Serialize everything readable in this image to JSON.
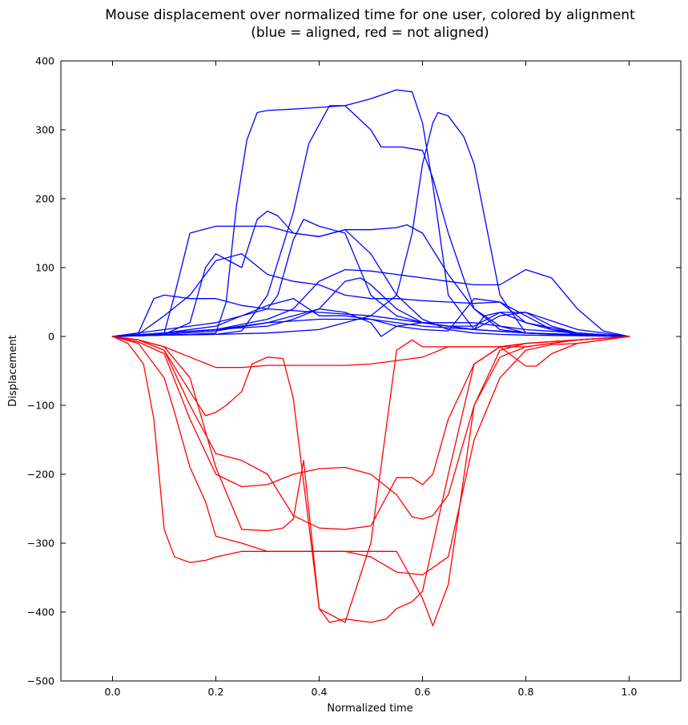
{
  "chart_data": {
    "type": "line",
    "title": "Mouse displacement over normalized time for one user, colored by alignment",
    "subtitle": "(blue = aligned, red = not aligned)",
    "xlabel": "Normalized time",
    "ylabel": "Displacement",
    "xlim": [
      -0.1,
      1.1
    ],
    "ylim": [
      -500,
      400
    ],
    "xticks": [
      0.0,
      0.2,
      0.4,
      0.6,
      0.8,
      1.0
    ],
    "xtick_labels": [
      "0.0",
      "0.2",
      "0.4",
      "0.6",
      "0.8",
      "1.0"
    ],
    "yticks": [
      -500,
      -400,
      -300,
      -200,
      -100,
      0,
      100,
      200,
      300,
      400
    ],
    "ytick_labels": [
      "−500",
      "−400",
      "−300",
      "−200",
      "−100",
      "0",
      "100",
      "200",
      "300",
      "400"
    ],
    "grid": false,
    "legend": "none",
    "colors": {
      "aligned": "#0000ff",
      "not_aligned": "#ff0000"
    },
    "series": [
      {
        "group": "aligned",
        "x": [
          0,
          0.1,
          0.15,
          0.2,
          0.22,
          0.24,
          0.26,
          0.28,
          0.3,
          0.35,
          0.45,
          0.5,
          0.52,
          0.56,
          0.6,
          0.62,
          0.65,
          0.7,
          0.75,
          0.8,
          0.9,
          1.0
        ],
        "y": [
          0,
          2,
          3,
          5,
          50,
          190,
          285,
          325,
          328,
          330,
          335,
          300,
          275,
          275,
          270,
          230,
          150,
          40,
          10,
          5,
          2,
          0
        ]
      },
      {
        "group": "aligned",
        "x": [
          0,
          0.1,
          0.2,
          0.25,
          0.3,
          0.35,
          0.38,
          0.42,
          0.45,
          0.5,
          0.55,
          0.58,
          0.6,
          0.62,
          0.65,
          0.7,
          0.8,
          0.9,
          1.0
        ],
        "y": [
          0,
          2,
          3,
          8,
          60,
          180,
          280,
          335,
          335,
          345,
          358,
          355,
          310,
          220,
          60,
          10,
          5,
          2,
          0
        ]
      },
      {
        "group": "aligned",
        "x": [
          0,
          0.1,
          0.2,
          0.3,
          0.4,
          0.5,
          0.55,
          0.58,
          0.6,
          0.62,
          0.63,
          0.65,
          0.68,
          0.7,
          0.75,
          0.8,
          0.9,
          1.0
        ],
        "y": [
          0,
          2,
          3,
          5,
          10,
          30,
          60,
          150,
          250,
          310,
          325,
          320,
          290,
          250,
          60,
          5,
          2,
          0
        ]
      },
      {
        "group": "aligned",
        "x": [
          0,
          0.05,
          0.1,
          0.12,
          0.15,
          0.2,
          0.25,
          0.3,
          0.35,
          0.4,
          0.45,
          0.5,
          0.55,
          0.57,
          0.6,
          0.65,
          0.7,
          0.75,
          0.8,
          0.85,
          0.9,
          1.0
        ],
        "y": [
          0,
          2,
          5,
          60,
          150,
          160,
          160,
          160,
          150,
          145,
          155,
          155,
          158,
          162,
          150,
          90,
          40,
          15,
          5,
          3,
          2,
          0
        ]
      },
      {
        "group": "aligned",
        "x": [
          0,
          0.1,
          0.15,
          0.18,
          0.2,
          0.25,
          0.28,
          0.3,
          0.32,
          0.35,
          0.4,
          0.45,
          0.5,
          0.55,
          0.6,
          0.65,
          0.7,
          0.75,
          0.8,
          0.9,
          1.0
        ],
        "y": [
          0,
          3,
          20,
          100,
          120,
          100,
          170,
          182,
          175,
          150,
          145,
          155,
          120,
          60,
          25,
          10,
          5,
          3,
          2,
          1,
          0
        ]
      },
      {
        "group": "aligned",
        "x": [
          0,
          0.05,
          0.1,
          0.2,
          0.25,
          0.3,
          0.32,
          0.35,
          0.37,
          0.4,
          0.45,
          0.5,
          0.55,
          0.6,
          0.65,
          0.7,
          0.75,
          0.8,
          0.9,
          1.0
        ],
        "y": [
          0,
          2,
          5,
          15,
          30,
          40,
          60,
          140,
          170,
          160,
          150,
          60,
          30,
          20,
          15,
          10,
          30,
          35,
          10,
          0
        ]
      },
      {
        "group": "aligned",
        "x": [
          0,
          0.05,
          0.08,
          0.1,
          0.15,
          0.2,
          0.25,
          0.3,
          0.4,
          0.5,
          0.6,
          0.65,
          0.7,
          0.72,
          0.75,
          0.8,
          0.85,
          0.9,
          0.95,
          1.0
        ],
        "y": [
          0,
          5,
          55,
          60,
          55,
          55,
          45,
          40,
          35,
          30,
          20,
          15,
          10,
          30,
          35,
          35,
          15,
          5,
          2,
          0
        ]
      },
      {
        "group": "aligned",
        "x": [
          0,
          0.05,
          0.1,
          0.15,
          0.2,
          0.25,
          0.3,
          0.35,
          0.4,
          0.45,
          0.5,
          0.55,
          0.6,
          0.65,
          0.7,
          0.75,
          0.8,
          0.85,
          0.9,
          1.0
        ],
        "y": [
          0,
          3,
          30,
          60,
          110,
          120,
          90,
          80,
          75,
          60,
          55,
          55,
          52,
          50,
          48,
          50,
          30,
          10,
          3,
          0
        ]
      },
      {
        "group": "aligned",
        "x": [
          0,
          0.1,
          0.2,
          0.3,
          0.35,
          0.4,
          0.45,
          0.5,
          0.55,
          0.6,
          0.65,
          0.7,
          0.75,
          0.8,
          0.85,
          0.9,
          0.95,
          1.0
        ],
        "y": [
          0,
          5,
          10,
          25,
          40,
          80,
          97,
          95,
          90,
          85,
          80,
          75,
          75,
          97,
          85,
          40,
          8,
          0
        ]
      },
      {
        "group": "aligned",
        "x": [
          0,
          0.1,
          0.2,
          0.3,
          0.35,
          0.4,
          0.45,
          0.48,
          0.5,
          0.55,
          0.6,
          0.65,
          0.7,
          0.75,
          0.8,
          0.9,
          1.0
        ],
        "y": [
          0,
          5,
          10,
          20,
          30,
          40,
          80,
          85,
          75,
          40,
          20,
          15,
          15,
          35,
          20,
          5,
          0
        ]
      },
      {
        "group": "aligned",
        "x": [
          0,
          0.1,
          0.2,
          0.25,
          0.3,
          0.35,
          0.4,
          0.45,
          0.5,
          0.55,
          0.6,
          0.65,
          0.7,
          0.75,
          0.8,
          0.85,
          0.9,
          1.0
        ],
        "y": [
          0,
          10,
          20,
          30,
          45,
          55,
          30,
          30,
          25,
          15,
          10,
          8,
          55,
          50,
          20,
          10,
          5,
          0
        ]
      },
      {
        "group": "aligned",
        "x": [
          0,
          0.1,
          0.2,
          0.3,
          0.35,
          0.4,
          0.45,
          0.5,
          0.52,
          0.55,
          0.6,
          0.65,
          0.7,
          0.75,
          0.8,
          0.9,
          1.0
        ],
        "y": [
          0,
          5,
          10,
          15,
          25,
          40,
          35,
          20,
          0,
          15,
          20,
          20,
          20,
          15,
          10,
          5,
          0
        ]
      },
      {
        "group": "aligned",
        "x": [
          0,
          0.1,
          0.2,
          0.3,
          0.4,
          0.5,
          0.6,
          0.7,
          0.8,
          0.9,
          1.0
        ],
        "y": [
          0,
          3,
          8,
          20,
          25,
          25,
          15,
          10,
          5,
          3,
          0
        ]
      },
      {
        "group": "not_aligned",
        "x": [
          0,
          0.03,
          0.06,
          0.08,
          0.1,
          0.12,
          0.15,
          0.18,
          0.2,
          0.25,
          0.3,
          0.35,
          0.4,
          0.45,
          0.5,
          0.55,
          0.6,
          0.65,
          0.7,
          0.75,
          0.8,
          0.85,
          0.9,
          0.95,
          1.0
        ],
        "y": [
          0,
          -10,
          -40,
          -120,
          -280,
          -320,
          -328,
          -325,
          -320,
          -312,
          -312,
          -312,
          -312,
          -312,
          -320,
          -342,
          -346,
          -320,
          -150,
          -60,
          -20,
          -12,
          -10,
          -5,
          0
        ]
      },
      {
        "group": "not_aligned",
        "x": [
          0,
          0.05,
          0.1,
          0.12,
          0.15,
          0.18,
          0.2,
          0.25,
          0.3,
          0.35,
          0.4,
          0.45,
          0.5,
          0.55,
          0.6,
          0.62,
          0.65,
          0.7,
          0.75,
          0.8,
          0.9,
          1.0
        ],
        "y": [
          0,
          -10,
          -60,
          -110,
          -190,
          -240,
          -290,
          -300,
          -312,
          -312,
          -312,
          -312,
          -312,
          -312,
          -380,
          -420,
          -360,
          -100,
          -20,
          -10,
          -5,
          0
        ]
      },
      {
        "group": "not_aligned",
        "x": [
          0,
          0.05,
          0.1,
          0.15,
          0.2,
          0.25,
          0.3,
          0.33,
          0.35,
          0.37,
          0.4,
          0.42,
          0.45,
          0.5,
          0.53,
          0.55,
          0.58,
          0.6,
          0.65,
          0.7,
          0.75,
          0.8,
          0.9,
          1.0
        ],
        "y": [
          0,
          -5,
          -15,
          -60,
          -190,
          -280,
          -282,
          -278,
          -265,
          -180,
          -395,
          -415,
          -410,
          -415,
          -410,
          -395,
          -385,
          -370,
          -200,
          -40,
          -15,
          -10,
          -5,
          0
        ]
      },
      {
        "group": "not_aligned",
        "x": [
          0,
          0.05,
          0.1,
          0.15,
          0.18,
          0.2,
          0.22,
          0.25,
          0.27,
          0.3,
          0.33,
          0.35,
          0.4,
          0.45,
          0.5,
          0.55,
          0.58,
          0.6,
          0.65,
          0.7,
          0.75,
          0.8,
          0.85,
          0.9,
          1.0
        ],
        "y": [
          0,
          -5,
          -20,
          -80,
          -115,
          -110,
          -100,
          -80,
          -40,
          -30,
          -32,
          -90,
          -395,
          -415,
          -300,
          -20,
          -5,
          -15,
          -15,
          -15,
          -15,
          -15,
          -10,
          -5,
          0
        ]
      },
      {
        "group": "not_aligned",
        "x": [
          0,
          0.05,
          0.1,
          0.15,
          0.2,
          0.25,
          0.3,
          0.35,
          0.4,
          0.45,
          0.5,
          0.55,
          0.6,
          0.65,
          0.7,
          0.75,
          0.8,
          0.82,
          0.85,
          0.9,
          1.0
        ],
        "y": [
          0,
          -5,
          -15,
          -30,
          -45,
          -45,
          -42,
          -42,
          -42,
          -42,
          -40,
          -35,
          -30,
          -15,
          -15,
          -15,
          -43,
          -43,
          -25,
          -10,
          0
        ]
      },
      {
        "group": "not_aligned",
        "x": [
          0,
          0.05,
          0.1,
          0.15,
          0.2,
          0.25,
          0.3,
          0.35,
          0.4,
          0.45,
          0.5,
          0.55,
          0.58,
          0.6,
          0.62,
          0.65,
          0.7,
          0.75,
          0.8,
          0.9,
          1.0
        ],
        "y": [
          0,
          -5,
          -20,
          -100,
          -170,
          -180,
          -200,
          -260,
          -278,
          -280,
          -275,
          -205,
          -205,
          -215,
          -200,
          -120,
          -40,
          -15,
          -10,
          -5,
          0
        ]
      },
      {
        "group": "not_aligned",
        "x": [
          0,
          0.05,
          0.1,
          0.15,
          0.2,
          0.25,
          0.3,
          0.35,
          0.4,
          0.45,
          0.5,
          0.55,
          0.58,
          0.6,
          0.62,
          0.65,
          0.7,
          0.75,
          0.8,
          0.9,
          1.0
        ],
        "y": [
          0,
          -8,
          -25,
          -120,
          -200,
          -218,
          -215,
          -200,
          -192,
          -190,
          -200,
          -230,
          -262,
          -265,
          -260,
          -230,
          -100,
          -30,
          -15,
          -5,
          0
        ]
      }
    ]
  }
}
